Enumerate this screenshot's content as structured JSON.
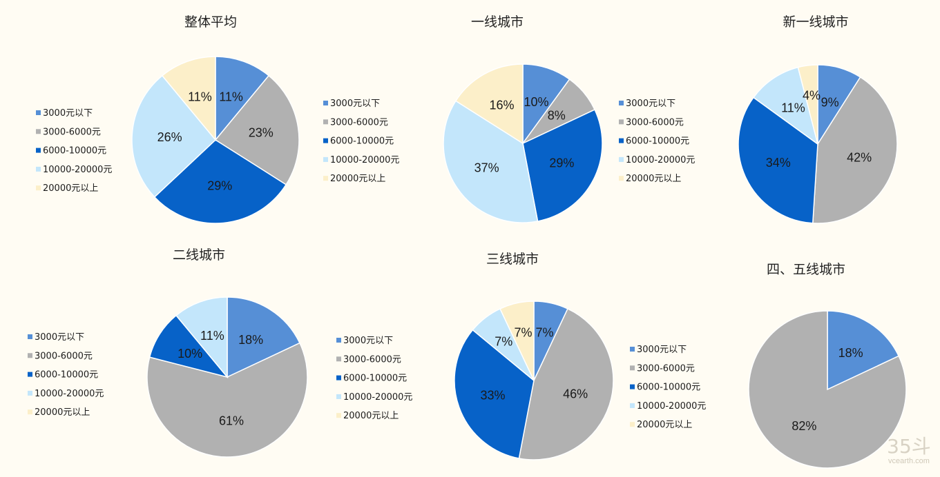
{
  "colors": {
    "background": "#fffcf3",
    "slices": [
      "#568fd6",
      "#b1b1b1",
      "#0762c8",
      "#c3e6fb",
      "#fcefc9"
    ]
  },
  "legend_labels": [
    "3000元以下",
    "3000-6000元",
    "6000-10000元",
    "10000-20000元",
    "20000元以上"
  ],
  "chart_data": [
    {
      "type": "pie",
      "title": "整体平均",
      "categories": [
        "3000元以下",
        "3000-6000元",
        "6000-10000元",
        "10000-20000元",
        "20000元以上"
      ],
      "values": [
        11,
        23,
        29,
        26,
        11
      ],
      "labels": [
        "11%",
        "23%",
        "29%",
        "26%",
        "11%"
      ],
      "legend": "left"
    },
    {
      "type": "pie",
      "title": "一线城市",
      "categories": [
        "3000元以下",
        "3000-6000元",
        "6000-10000元",
        "10000-20000元",
        "20000元以上"
      ],
      "values": [
        10,
        8,
        29,
        37,
        16
      ],
      "labels": [
        "10%",
        "8%",
        "29%",
        "37%",
        "16%"
      ],
      "legend": "left"
    },
    {
      "type": "pie",
      "title": "新一线城市",
      "categories": [
        "3000元以下",
        "3000-6000元",
        "6000-10000元",
        "10000-20000元",
        "20000元以上"
      ],
      "values": [
        9,
        42,
        34,
        11,
        4
      ],
      "labels": [
        "9%",
        "42%",
        "34%",
        "11%",
        "4%"
      ],
      "legend": "left"
    },
    {
      "type": "pie",
      "title": "二线城市",
      "categories": [
        "3000元以下",
        "3000-6000元",
        "6000-10000元",
        "10000-20000元",
        "20000元以上"
      ],
      "values": [
        18,
        61,
        10,
        11,
        0
      ],
      "labels": [
        "18%",
        "61%",
        "10%",
        "11%",
        ""
      ],
      "legend": "left"
    },
    {
      "type": "pie",
      "title": "三线城市",
      "categories": [
        "3000元以下",
        "3000-6000元",
        "6000-10000元",
        "10000-20000元",
        "20000元以上"
      ],
      "values": [
        7,
        46,
        33,
        7,
        7
      ],
      "labels": [
        "7%",
        "46%",
        "33%",
        "7%",
        "7%"
      ],
      "legend": "left"
    },
    {
      "type": "pie",
      "title": "四、五线城市",
      "categories": [
        "3000元以下",
        "3000-6000元"
      ],
      "values": [
        18,
        82
      ],
      "labels": [
        "18%",
        "82%"
      ],
      "legend": "none"
    }
  ],
  "watermark": {
    "number": "35斗",
    "url": "vcearth.com"
  }
}
